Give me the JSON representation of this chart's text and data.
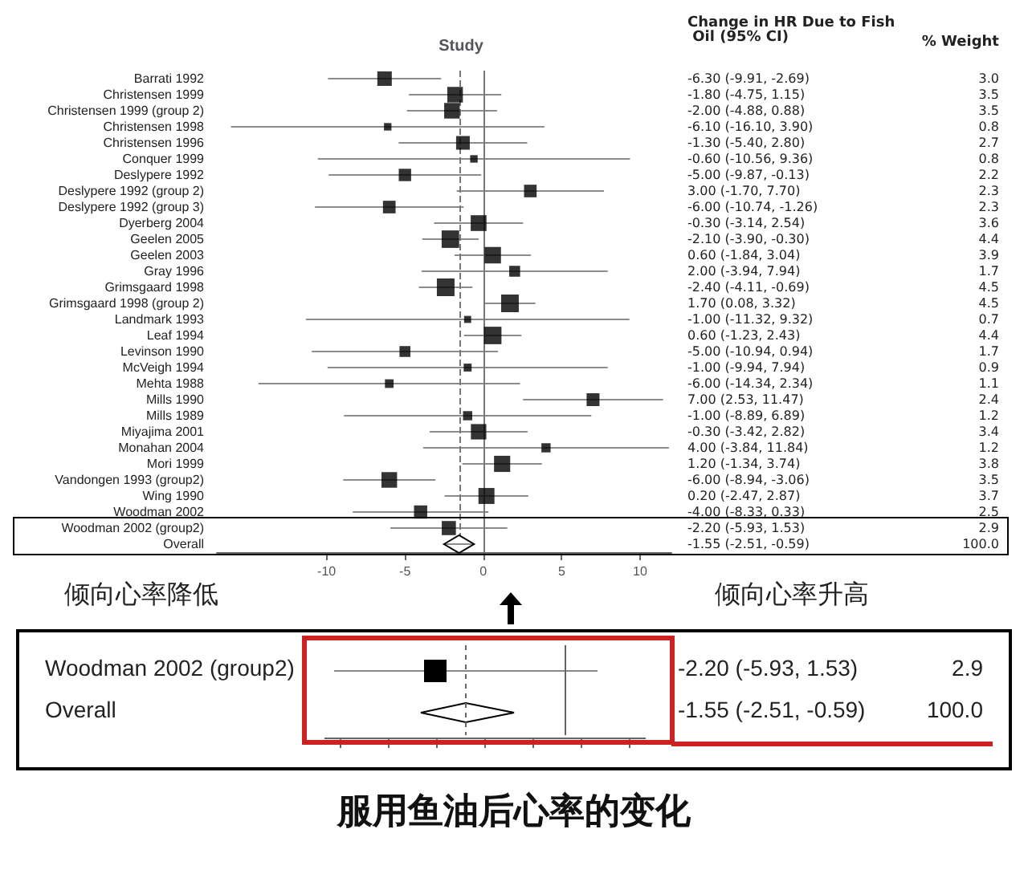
{
  "chart_data": [
    {
      "type": "bubble",
      "title": "服用鱼油后心率的变化",
      "ylabel": "Study",
      "orientation": "horizontal",
      "categories": [
        "Barrati 1992",
        "Christensen 1999",
        "Christensen 1999 (group 2)",
        "Christensen 1998",
        "Christensen 1996",
        "Conquer 1999",
        "Deslypere 1992",
        "Deslypere 1992 (group 2)",
        "Deslypere 1992 (group 3)",
        "Dyerberg 2004",
        "Geelen 2005",
        "Geelen 2003",
        "Gray 1996",
        "Grimsgaard 1998",
        "Grimsgaard 1998 (group 2)",
        "Landmark 1993",
        "Leaf 1994",
        "Levinson 1990",
        "McVeigh 1994",
        "Mehta 1988",
        "Mills 1990",
        "Mills 1989",
        "Miyajima 2001",
        "Monahan 2004",
        "Mori 1999",
        "Vandongen 1993 (group2)",
        "Wing 1990",
        "Woodman 2002",
        "Woodman 2002 (group2)",
        "Overall"
      ],
      "xlim": [
        -17,
        12
      ],
      "xticks": [
        -10,
        -5,
        0,
        5,
        10
      ],
      "ref_lines": [
        {
          "axis": "x",
          "value": 0,
          "line_style": "solid"
        },
        {
          "axis": "x",
          "value": -1.55,
          "line_style": "dashed"
        }
      ],
      "series": [
        {
          "marker": "square",
          "color": "#000000",
          "values": [
            -6.3,
            -1.8,
            -2.0,
            -6.1,
            -1.3,
            -0.6,
            -5.0,
            3.0,
            -6.0,
            -0.3,
            -2.1,
            0.6,
            2.0,
            -2.4,
            1.7,
            -1.0,
            0.6,
            -5.0,
            -1.0,
            -6.0,
            7.0,
            -1.0,
            -0.3,
            4.0,
            1.2,
            -6.0,
            0.2,
            -4.0,
            -2.2,
            null
          ],
          "errors": [
            [
              -9.91,
              -2.69
            ],
            [
              -4.75,
              1.15
            ],
            [
              -4.88,
              0.88
            ],
            [
              -16.1,
              3.9
            ],
            [
              -5.4,
              2.8
            ],
            [
              -10.56,
              9.36
            ],
            [
              -9.87,
              -0.13
            ],
            [
              -1.7,
              7.7
            ],
            [
              -10.74,
              -1.26
            ],
            [
              -3.14,
              2.54
            ],
            [
              -3.9,
              -0.3
            ],
            [
              -1.84,
              3.04
            ],
            [
              -3.94,
              7.94
            ],
            [
              -4.11,
              -0.69
            ],
            [
              0.08,
              3.32
            ],
            [
              -11.32,
              9.32
            ],
            [
              -1.23,
              2.43
            ],
            [
              -10.94,
              0.94
            ],
            [
              -9.94,
              7.94
            ],
            [
              -14.34,
              2.34
            ],
            [
              2.53,
              11.47
            ],
            [
              -8.89,
              6.89
            ],
            [
              -3.42,
              2.82
            ],
            [
              -3.84,
              11.84
            ],
            [
              -1.34,
              3.74
            ],
            [
              -8.94,
              -3.06
            ],
            [
              -2.47,
              2.87
            ],
            [
              -8.33,
              0.33
            ],
            [
              -5.93,
              1.53
            ],
            null
          ],
          "sizes": [
            0.67,
            0.78,
            0.78,
            0.18,
            0.6,
            0.18,
            0.49,
            0.51,
            0.51,
            0.8,
            0.98,
            0.87,
            0.38,
            1,
            1,
            0.16,
            0.98,
            0.38,
            0.2,
            0.24,
            0.53,
            0.27,
            0.76,
            0.27,
            0.84,
            0.78,
            0.82,
            0.56,
            0.64,
            null
          ]
        },
        {
          "type": "scatter",
          "marker": "diamond",
          "color": "#000000",
          "values": [
            null,
            null,
            null,
            null,
            null,
            null,
            null,
            null,
            null,
            null,
            null,
            null,
            null,
            null,
            null,
            null,
            null,
            null,
            null,
            null,
            null,
            null,
            null,
            null,
            null,
            null,
            null,
            null,
            null,
            -1.55
          ],
          "errors": [
            null,
            null,
            null,
            null,
            null,
            null,
            null,
            null,
            null,
            null,
            null,
            null,
            null,
            null,
            null,
            null,
            null,
            null,
            null,
            null,
            null,
            null,
            null,
            null,
            null,
            null,
            null,
            null,
            null,
            [
              -2.51,
              -0.59
            ]
          ]
        }
      ],
      "annotations": [
        "Change in HR Due to Fish Oil (95% CI)",
        "% Weight",
        "倾向心率降低",
        "倾向心率升高",
        "-6.30 (-9.91, -2.69)",
        "3.0",
        "-1.80 (-4.75, 1.15)",
        "3.5",
        "-2.00 (-4.88, 0.88)",
        "3.5",
        "-6.10 (-16.10, 3.90)",
        "0.8",
        "-1.30 (-5.40, 2.80)",
        "2.7",
        "-0.60 (-10.56, 9.36)",
        "0.8",
        "-5.00 (-9.87, -0.13)",
        "2.2",
        "3.00 (-1.70, 7.70)",
        "2.3",
        "-6.00 (-10.74, -1.26)",
        "2.3",
        "-0.30 (-3.14, 2.54)",
        "3.6",
        "-2.10 (-3.90, -0.30)",
        "4.4",
        "0.60 (-1.84, 3.04)",
        "3.9",
        "2.00 (-3.94, 7.94)",
        "1.7",
        "-2.40 (-4.11, -0.69)",
        "4.5",
        "1.70 (0.08, 3.32)",
        "4.5",
        "-1.00 (-11.32, 9.32)",
        "0.7",
        "0.60 (-1.23, 2.43)",
        "4.4",
        "-5.00 (-10.94, 0.94)",
        "1.7",
        "-1.00 (-9.94, 7.94)",
        "0.9",
        "-6.00 (-14.34, 2.34)",
        "1.1",
        "7.00 (2.53, 11.47)",
        "2.4",
        "-1.00 (-8.89, 6.89)",
        "1.2",
        "-0.30 (-3.42, 2.82)",
        "3.4",
        "4.00 (-3.84, 11.84)",
        "1.2",
        "1.20 (-1.34, 3.74)",
        "3.8",
        "-6.00 (-8.94, -3.06)",
        "3.5",
        "0.20 (-2.47, 2.87)",
        "3.7",
        "-4.00 (-8.33, 0.33)",
        "2.5",
        "-2.20 (-5.93, 1.53)",
        "2.9",
        "-1.55 (-2.51, -0.59)",
        "100.0"
      ]
    },
    {
      "type": "other",
      "annotations": [
        "Woodman 2002 (group2)",
        "-2.20 (-5.93, 1.53)",
        "2.9",
        "Overall",
        "-1.55 (-2.51, -0.59)",
        "100.0"
      ]
    }
  ]
}
